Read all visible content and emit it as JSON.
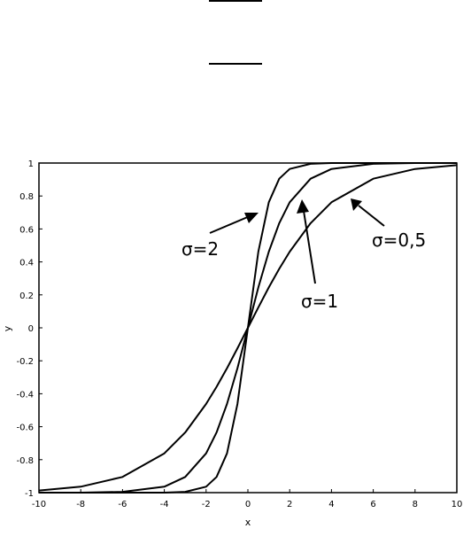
{
  "chart_data": {
    "type": "line",
    "title": "",
    "xlabel": "x",
    "ylabel": "y",
    "xlim": [
      -10,
      10
    ],
    "ylim": [
      -1,
      1
    ],
    "grid": false,
    "x_ticks": [
      "-10",
      "-8",
      "-6",
      "-4",
      "-2",
      "0",
      "2",
      "4",
      "6",
      "8",
      "10"
    ],
    "y_ticks": [
      "1",
      "0.8",
      "0.6",
      "0.4",
      "0.2",
      "0",
      "-0.2",
      "-0.4",
      "-0.6",
      "-0.8",
      "-1"
    ],
    "x_tick_values": [
      -10,
      -8,
      -6,
      -4,
      -2,
      0,
      2,
      4,
      6,
      8,
      10
    ],
    "y_tick_values": [
      1,
      0.8,
      0.6,
      0.4,
      0.2,
      0,
      -0.2,
      -0.4,
      -0.6,
      -0.8,
      -1
    ],
    "series": [
      {
        "x": [
          -10,
          -8,
          -6,
          -4,
          -3,
          -2,
          -1.5,
          -1,
          -0.5,
          0,
          0.5,
          1,
          1.5,
          2,
          3,
          4,
          6,
          8,
          10
        ],
        "values": [
          -1.0,
          -1.0,
          -1.0,
          -1.0,
          -0.995,
          -0.964,
          -0.905,
          -0.762,
          -0.462,
          0.0,
          0.462,
          0.762,
          0.905,
          0.964,
          0.995,
          1.0,
          1.0,
          1.0,
          1.0
        ]
      },
      {
        "x": [
          -10,
          -8,
          -6,
          -4,
          -3,
          -2,
          -1.5,
          -1,
          -0.5,
          0,
          0.5,
          1,
          1.5,
          2,
          3,
          4,
          6,
          8,
          10
        ],
        "values": [
          -1.0,
          -1.0,
          -0.995,
          -0.964,
          -0.905,
          -0.762,
          -0.635,
          -0.462,
          -0.245,
          0.0,
          0.245,
          0.462,
          0.635,
          0.762,
          0.905,
          0.964,
          0.995,
          1.0,
          1.0
        ]
      },
      {
        "x": [
          -10,
          -8,
          -6,
          -4,
          -3,
          -2,
          -1.5,
          -1,
          -0.5,
          0,
          0.5,
          1,
          1.5,
          2,
          3,
          4,
          6,
          8,
          10
        ],
        "values": [
          -0.987,
          -0.964,
          -0.905,
          -0.762,
          -0.635,
          -0.462,
          -0.358,
          -0.245,
          -0.124,
          0.0,
          0.124,
          0.245,
          0.358,
          0.462,
          0.635,
          0.762,
          0.905,
          0.964,
          0.987
        ]
      }
    ],
    "annotations": [
      {
        "text": "σ=2",
        "arrow_to": [
          0.3,
          0.7
        ]
      },
      {
        "text": "σ=1",
        "arrow_to": [
          2.5,
          0.78
        ]
      },
      {
        "text": "σ=0,5",
        "arrow_to": [
          4.8,
          0.78
        ]
      }
    ]
  }
}
